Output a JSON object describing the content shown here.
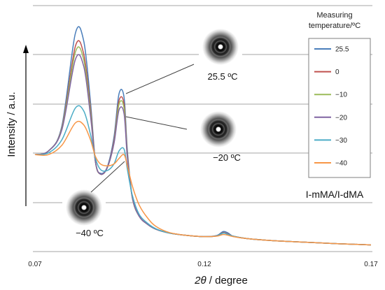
{
  "chart_data": {
    "type": "line",
    "xlabel_italic": "2θ",
    "xlabel_rest": "/ degree",
    "ylabel": "Intensity / a.u.",
    "xlim": [
      0.07,
      0.17
    ],
    "x_ticks": [
      "0.07",
      "0.12",
      "0.17"
    ],
    "grid": "horizontal",
    "legend_title": [
      "Measuring",
      "temperature/ºC"
    ],
    "legend_position": "right",
    "sample_label": "I-mMA/I-dMA",
    "annotations": [
      {
        "text": "25.5 ºC",
        "series": "25.5"
      },
      {
        "text": "−20 ºC",
        "series": "−20"
      },
      {
        "text": "−40 ºC",
        "series": "−40"
      }
    ],
    "x": [
      0.07,
      0.074,
      0.078,
      0.082,
      0.0845,
      0.0865,
      0.088,
      0.0895,
      0.0915,
      0.0935,
      0.095,
      0.0965,
      0.0975,
      0.099,
      0.101,
      0.1035,
      0.106,
      0.11,
      0.115,
      0.12,
      0.124,
      0.126,
      0.1275,
      0.129,
      0.133,
      0.14,
      0.15,
      0.16,
      0.17
    ],
    "series": [
      {
        "name": "25.5",
        "color": "#4a7ebb",
        "values": [
          0.43,
          0.447,
          0.565,
          1.0,
          0.965,
          0.68,
          0.395,
          0.342,
          0.372,
          0.512,
          0.716,
          0.7,
          0.447,
          0.226,
          0.14,
          0.102,
          0.079,
          0.061,
          0.05,
          0.044,
          0.049,
          0.068,
          0.061,
          0.046,
          0.035,
          0.026,
          0.018,
          0.011,
          0.005
        ]
      },
      {
        "name": "0",
        "color": "#c0504d",
        "values": [
          0.43,
          0.447,
          0.556,
          0.939,
          0.904,
          0.649,
          0.395,
          0.338,
          0.368,
          0.495,
          0.684,
          0.667,
          0.43,
          0.224,
          0.14,
          0.102,
          0.079,
          0.061,
          0.05,
          0.044,
          0.047,
          0.063,
          0.056,
          0.046,
          0.035,
          0.026,
          0.018,
          0.011,
          0.005
        ]
      },
      {
        "name": "−10",
        "color": "#9bbb59",
        "values": [
          0.43,
          0.447,
          0.552,
          0.912,
          0.877,
          0.632,
          0.395,
          0.338,
          0.368,
          0.487,
          0.667,
          0.649,
          0.421,
          0.224,
          0.14,
          0.102,
          0.079,
          0.061,
          0.05,
          0.044,
          0.047,
          0.061,
          0.054,
          0.046,
          0.035,
          0.026,
          0.018,
          0.011,
          0.005
        ]
      },
      {
        "name": "−20",
        "color": "#8064a2",
        "values": [
          0.43,
          0.447,
          0.547,
          0.877,
          0.846,
          0.614,
          0.395,
          0.338,
          0.368,
          0.482,
          0.64,
          0.623,
          0.412,
          0.226,
          0.14,
          0.102,
          0.079,
          0.061,
          0.05,
          0.044,
          0.047,
          0.061,
          0.054,
          0.046,
          0.035,
          0.026,
          0.018,
          0.011,
          0.005
        ]
      },
      {
        "name": "−30",
        "color": "#4bacc6",
        "values": [
          0.43,
          0.438,
          0.5,
          0.649,
          0.636,
          0.526,
          0.412,
          0.36,
          0.355,
          0.386,
          0.447,
          0.456,
          0.36,
          0.237,
          0.149,
          0.107,
          0.081,
          0.061,
          0.05,
          0.044,
          0.047,
          0.061,
          0.054,
          0.046,
          0.035,
          0.026,
          0.018,
          0.011,
          0.005
        ]
      },
      {
        "name": "−40",
        "color": "#f79646",
        "values": [
          0.43,
          0.43,
          0.474,
          0.579,
          0.57,
          0.5,
          0.421,
          0.386,
          0.377,
          0.386,
          0.412,
          0.43,
          0.377,
          0.281,
          0.193,
          0.132,
          0.092,
          0.063,
          0.05,
          0.044,
          0.046,
          0.054,
          0.05,
          0.044,
          0.035,
          0.026,
          0.018,
          0.011,
          0.005
        ]
      }
    ]
  }
}
